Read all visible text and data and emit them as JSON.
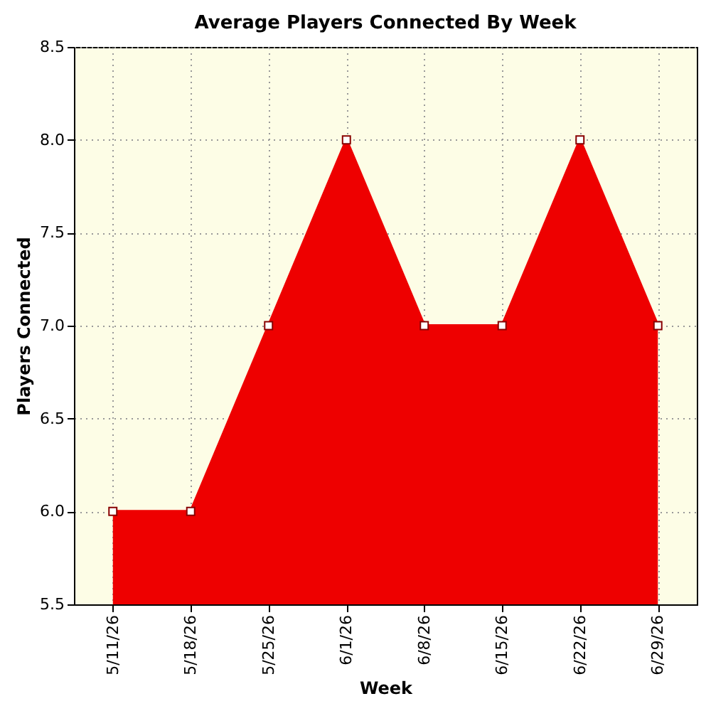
{
  "chart_data": {
    "type": "area",
    "title": "Average Players Connected By Week",
    "xlabel": "Week",
    "ylabel": "Players Connected",
    "categories": [
      "5/11/26",
      "5/18/26",
      "5/25/26",
      "6/1/26",
      "6/8/26",
      "6/15/26",
      "6/22/26",
      "6/29/26"
    ],
    "series": [
      {
        "color": "#ee0000",
        "values": [
          6,
          6,
          7,
          8,
          7,
          7,
          8,
          7
        ]
      }
    ],
    "ylim": [
      5.5,
      8.5
    ],
    "yticks": [
      5.5,
      {
        "value": 6,
        "label": "6.0"
      },
      6.5,
      {
        "value": 7,
        "label": "7.0"
      },
      7.5,
      {
        "value": 8,
        "label": "8.0"
      },
      8.5
    ],
    "grid": true,
    "marker": "square"
  }
}
